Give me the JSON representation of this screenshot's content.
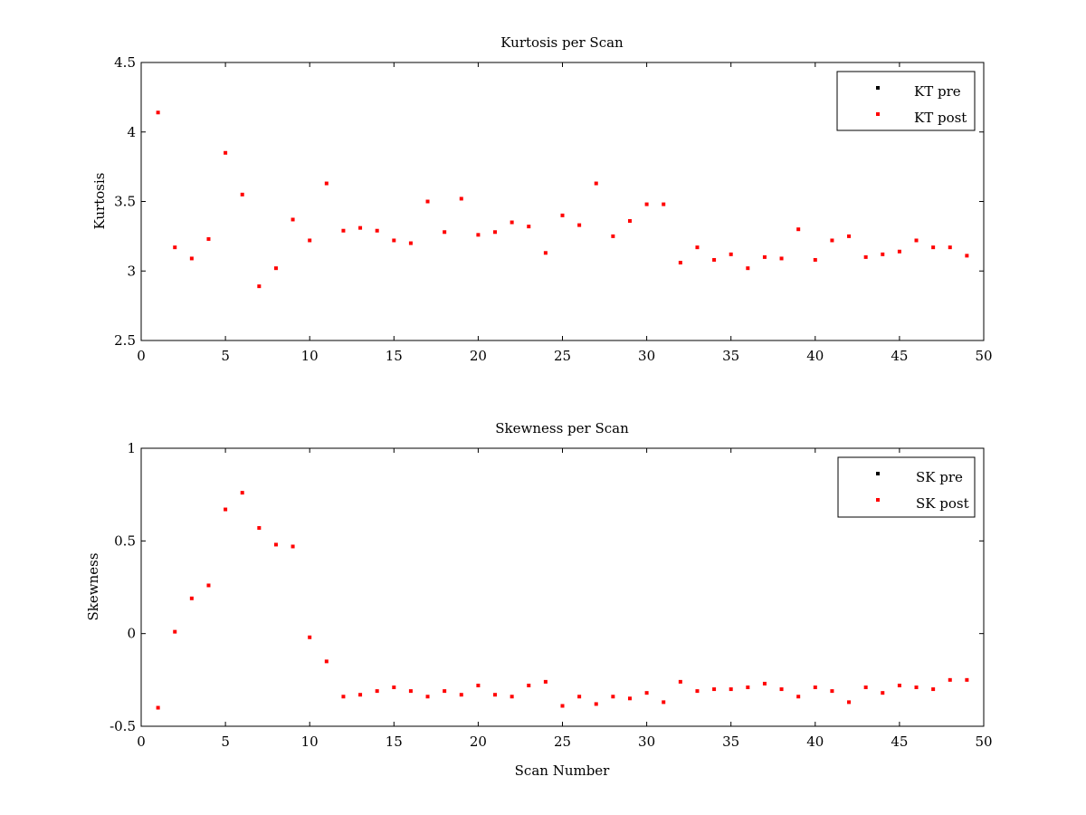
{
  "chart_data": [
    {
      "type": "scatter",
      "title": "Kurtosis per Scan",
      "xlabel": "",
      "ylabel": "Kurtosis",
      "xlim": [
        0,
        50
      ],
      "ylim": [
        2.5,
        4.5
      ],
      "xticks": [
        "0",
        "5",
        "10",
        "15",
        "20",
        "25",
        "30",
        "35",
        "40",
        "45",
        "50"
      ],
      "yticks": [
        "2.5",
        "3",
        "3.5",
        "4",
        "4.5"
      ],
      "legend_position": "top-right",
      "series": [
        {
          "name": "KT pre",
          "color": "#000000",
          "x": [],
          "values": []
        },
        {
          "name": "KT post",
          "color": "#ff0000",
          "x": [
            1,
            2,
            3,
            4,
            5,
            6,
            7,
            8,
            9,
            10,
            11,
            12,
            13,
            14,
            15,
            16,
            17,
            18,
            19,
            20,
            21,
            22,
            23,
            24,
            25,
            26,
            27,
            28,
            29,
            30,
            31,
            32,
            33,
            34,
            35,
            36,
            37,
            38,
            39,
            40,
            41,
            42,
            43,
            44,
            45,
            46,
            47,
            48,
            49
          ],
          "values": [
            4.14,
            3.17,
            3.09,
            3.23,
            3.85,
            3.55,
            2.89,
            3.02,
            3.37,
            3.22,
            3.63,
            3.29,
            3.31,
            3.29,
            3.22,
            3.2,
            3.5,
            3.28,
            3.52,
            3.26,
            3.28,
            3.35,
            3.32,
            3.13,
            3.4,
            3.33,
            3.63,
            3.25,
            3.36,
            3.48,
            3.48,
            3.06,
            3.17,
            3.08,
            3.12,
            3.02,
            3.1,
            3.09,
            3.3,
            3.08,
            3.22,
            3.25,
            3.1,
            3.12,
            3.14,
            3.22,
            3.17,
            3.17,
            3.11
          ]
        }
      ]
    },
    {
      "type": "scatter",
      "title": "Skewness per Scan",
      "xlabel": "Scan Number",
      "ylabel": "Skewness",
      "xlim": [
        0,
        50
      ],
      "ylim": [
        -0.5,
        1
      ],
      "xticks": [
        "0",
        "5",
        "10",
        "15",
        "20",
        "25",
        "30",
        "35",
        "40",
        "45",
        "50"
      ],
      "yticks": [
        "-0.5",
        "0",
        "0.5",
        "1"
      ],
      "legend_position": "top-right",
      "series": [
        {
          "name": "SK pre",
          "color": "#000000",
          "x": [],
          "values": []
        },
        {
          "name": "SK post",
          "color": "#ff0000",
          "x": [
            1,
            2,
            3,
            4,
            5,
            6,
            7,
            8,
            9,
            10,
            11,
            12,
            13,
            14,
            15,
            16,
            17,
            18,
            19,
            20,
            21,
            22,
            23,
            24,
            25,
            26,
            27,
            28,
            29,
            30,
            31,
            32,
            33,
            34,
            35,
            36,
            37,
            38,
            39,
            40,
            41,
            42,
            43,
            44,
            45,
            46,
            47,
            48,
            49
          ],
          "values": [
            -0.4,
            0.01,
            0.19,
            0.26,
            0.67,
            0.76,
            0.57,
            0.48,
            0.47,
            -0.02,
            -0.15,
            -0.34,
            -0.33,
            -0.31,
            -0.29,
            -0.31,
            -0.34,
            -0.31,
            -0.33,
            -0.28,
            -0.33,
            -0.34,
            -0.28,
            -0.26,
            -0.39,
            -0.34,
            -0.38,
            -0.34,
            -0.35,
            -0.32,
            -0.37,
            -0.26,
            -0.31,
            -0.3,
            -0.3,
            -0.29,
            -0.27,
            -0.3,
            -0.34,
            -0.29,
            -0.31,
            -0.37,
            -0.29,
            -0.32,
            -0.28,
            -0.29,
            -0.3,
            -0.25,
            -0.25
          ]
        }
      ]
    }
  ]
}
